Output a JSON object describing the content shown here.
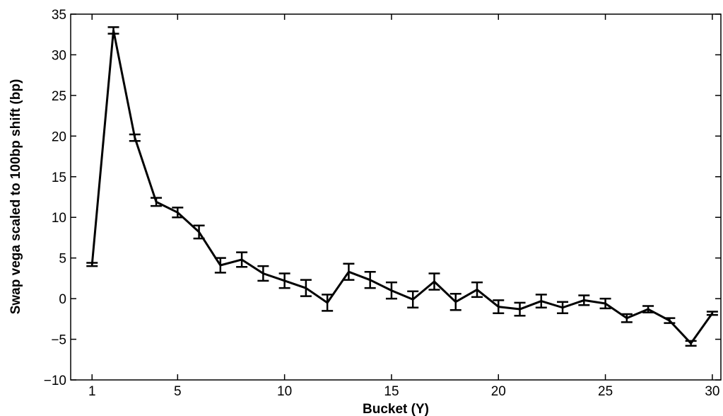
{
  "chart_data": {
    "type": "line",
    "title": "",
    "xlabel": "Bucket (Y)",
    "ylabel": "Swap vega scaled to 100bp shift (bp)",
    "xlim": [
      0,
      30.4
    ],
    "ylim": [
      -10,
      35
    ],
    "xticks": [
      1,
      5,
      10,
      15,
      20,
      25,
      30
    ],
    "yticks": [
      -10,
      -5,
      0,
      5,
      10,
      15,
      20,
      25,
      30,
      35
    ],
    "grid": false,
    "legend": "none",
    "line_color": "#000000",
    "series": [
      {
        "x": [
          1,
          2,
          3,
          4,
          5,
          6,
          7,
          8,
          9,
          10,
          11,
          12,
          13,
          14,
          15,
          16,
          17,
          18,
          19,
          20,
          21,
          22,
          23,
          24,
          25,
          26,
          27,
          28,
          29,
          30
        ],
        "y": [
          4.2,
          33.0,
          19.8,
          11.9,
          10.6,
          8.2,
          4.1,
          4.8,
          3.1,
          2.2,
          1.3,
          -0.5,
          3.3,
          2.3,
          1.0,
          -0.1,
          2.1,
          -0.4,
          1.1,
          -1.0,
          -1.3,
          -0.3,
          -1.1,
          -0.2,
          -0.6,
          -2.4,
          -1.3,
          -2.7,
          -5.5,
          -1.8
        ],
        "err": [
          0.2,
          0.4,
          0.4,
          0.5,
          0.6,
          0.8,
          0.9,
          0.9,
          0.9,
          0.9,
          1.0,
          1.0,
          1.0,
          1.0,
          1.0,
          1.0,
          1.0,
          1.0,
          0.9,
          0.8,
          0.8,
          0.8,
          0.7,
          0.6,
          0.6,
          0.5,
          0.4,
          0.3,
          0.3,
          0.2
        ]
      }
    ]
  }
}
